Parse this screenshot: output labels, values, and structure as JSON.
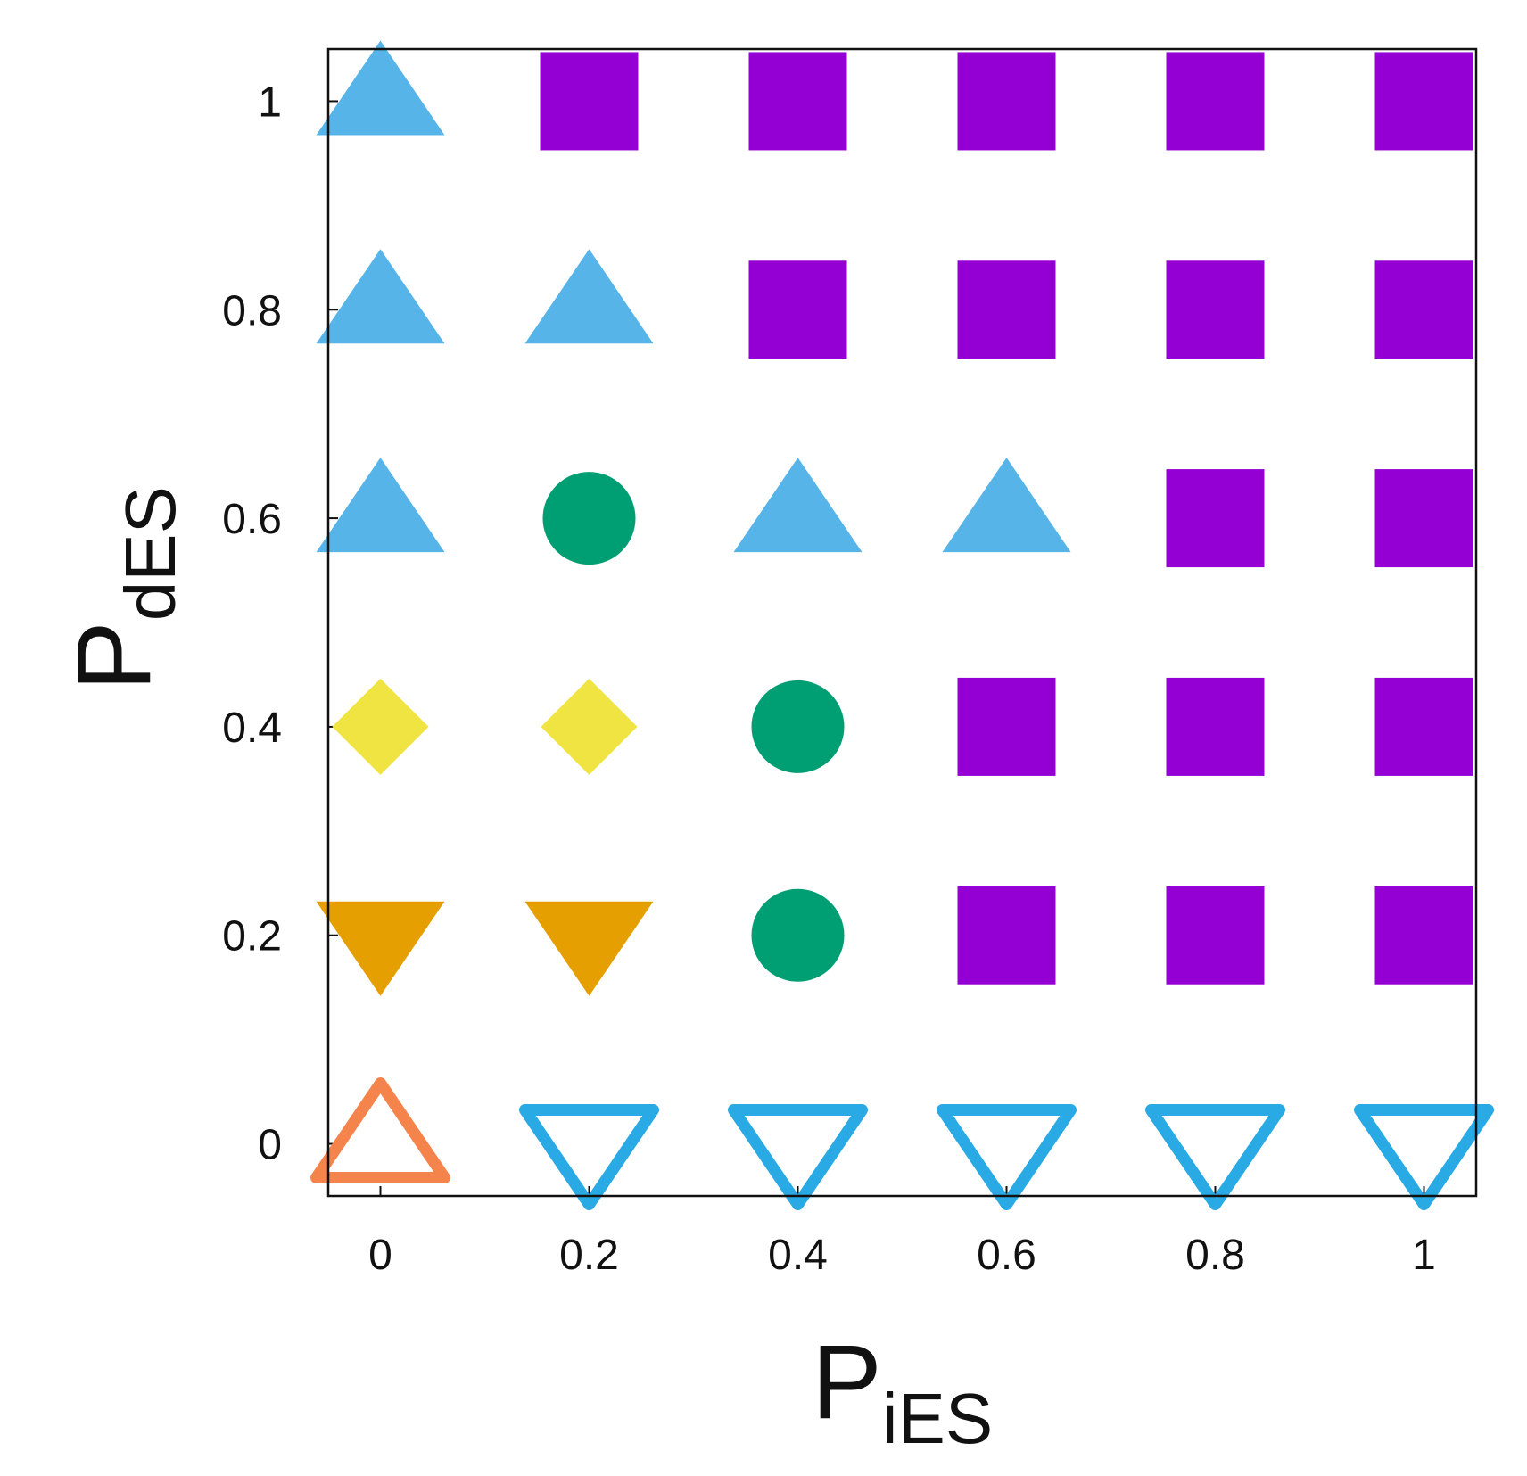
{
  "chart_data": {
    "type": "scatter",
    "xlabel": "P",
    "xlabel_sub": "iES",
    "ylabel": "P",
    "ylabel_sub": "dES",
    "xlim": [
      -0.05,
      1.05
    ],
    "ylim": [
      -0.05,
      1.05
    ],
    "xticks": [
      0,
      0.2,
      0.4,
      0.6,
      0.8,
      1
    ],
    "yticks": [
      0,
      0.2,
      0.4,
      0.6,
      0.8,
      1
    ],
    "grid": false,
    "series": [
      {
        "marker": "triangle-up",
        "filled": true,
        "color": "#56B4E9",
        "x": [
          0,
          0,
          0.2,
          0,
          0.4,
          0.6
        ],
        "y": [
          1,
          0.8,
          0.8,
          0.6,
          0.6,
          0.6
        ]
      },
      {
        "marker": "square",
        "filled": true,
        "color": "#9400D3",
        "x": [
          0.2,
          0.4,
          0.6,
          0.8,
          1,
          0.4,
          0.6,
          0.8,
          1,
          0.8,
          1,
          0.6,
          0.8,
          1,
          0.6,
          0.8,
          1
        ],
        "y": [
          1,
          1,
          1,
          1,
          1,
          0.8,
          0.8,
          0.8,
          0.8,
          0.6,
          0.6,
          0.4,
          0.4,
          0.4,
          0.2,
          0.2,
          0.2
        ]
      },
      {
        "marker": "circle",
        "filled": true,
        "color": "#009E73",
        "x": [
          0.2,
          0.4,
          0.4
        ],
        "y": [
          0.6,
          0.4,
          0.2
        ]
      },
      {
        "marker": "diamond",
        "filled": true,
        "color": "#F0E442",
        "x": [
          0,
          0.2
        ],
        "y": [
          0.4,
          0.4
        ]
      },
      {
        "marker": "triangle-down",
        "filled": true,
        "color": "#E69F00",
        "x": [
          0,
          0.2
        ],
        "y": [
          0.2,
          0.2
        ]
      },
      {
        "marker": "triangle-up",
        "filled": false,
        "color": "#F4844C",
        "x": [
          0
        ],
        "y": [
          0
        ]
      },
      {
        "marker": "triangle-down",
        "filled": false,
        "color": "#2AAAE4",
        "x": [
          0.2,
          0.4,
          0.6,
          0.8,
          1
        ],
        "y": [
          0,
          0,
          0,
          0,
          0
        ]
      }
    ]
  }
}
